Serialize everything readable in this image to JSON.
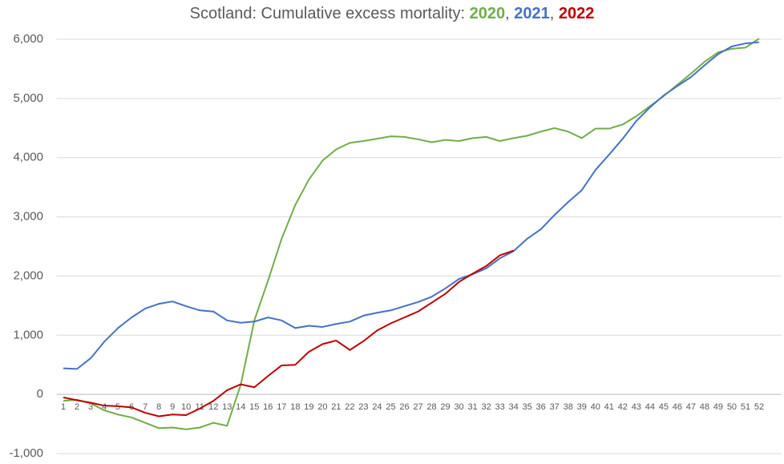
{
  "chart_data": {
    "type": "line",
    "title": "Scotland: Cumulative excess mortality:",
    "title_separator": ",",
    "categories": [
      "1",
      "2",
      "3",
      "4",
      "5",
      "6",
      "7",
      "8",
      "9",
      "10",
      "11",
      "12",
      "13",
      "14",
      "15",
      "16",
      "17",
      "18",
      "19",
      "20",
      "21",
      "22",
      "23",
      "24",
      "25",
      "26",
      "27",
      "28",
      "29",
      "30",
      "31",
      "32",
      "33",
      "34",
      "35",
      "36",
      "37",
      "38",
      "39",
      "40",
      "41",
      "42",
      "43",
      "44",
      "45",
      "46",
      "47",
      "48",
      "49",
      "50",
      "51",
      "52"
    ],
    "series": [
      {
        "name": "2020",
        "color": "#70ad47",
        "values": [
          -110,
          -90,
          -150,
          -270,
          -340,
          -390,
          -480,
          -570,
          -560,
          -590,
          -560,
          -480,
          -530,
          160,
          1250,
          1920,
          2630,
          3200,
          3630,
          3950,
          4140,
          4250,
          4280,
          4320,
          4360,
          4350,
          4310,
          4260,
          4300,
          4280,
          4330,
          4350,
          4280,
          4330,
          4370,
          4440,
          4500,
          4440,
          4330,
          4490,
          4490,
          4560,
          4700,
          4870,
          5040,
          5230,
          5420,
          5620,
          5780,
          5840,
          5860,
          6010
        ]
      },
      {
        "name": "2021",
        "color": "#4472c4",
        "values": [
          440,
          430,
          610,
          890,
          1120,
          1300,
          1450,
          1530,
          1570,
          1490,
          1420,
          1400,
          1250,
          1210,
          1230,
          1300,
          1250,
          1120,
          1160,
          1140,
          1190,
          1230,
          1330,
          1380,
          1420,
          1490,
          1560,
          1650,
          1790,
          1950,
          2030,
          2130,
          2300,
          2420,
          2630,
          2790,
          3030,
          3250,
          3450,
          3790,
          4050,
          4320,
          4620,
          4850,
          5050,
          5210,
          5360,
          5560,
          5750,
          5880,
          5930,
          5950
        ]
      },
      {
        "name": "2022",
        "color": "#c00000",
        "values": [
          -50,
          -100,
          -140,
          -190,
          -200,
          -220,
          -310,
          -370,
          -340,
          -350,
          -240,
          -110,
          70,
          170,
          120,
          310,
          490,
          500,
          720,
          850,
          910,
          750,
          900,
          1080,
          1200,
          1300,
          1400,
          1550,
          1700,
          1900,
          2040,
          2170,
          2350,
          2430,
          null,
          null,
          null,
          null,
          null,
          null,
          null,
          null,
          null,
          null,
          null,
          null,
          null,
          null,
          null,
          null,
          null,
          null
        ]
      }
    ],
    "ylim": [
      -1000,
      6000
    ],
    "yticks": [
      {
        "value": -1000,
        "label": "-1,000"
      },
      0,
      {
        "value": 1000,
        "label": "1,000"
      },
      {
        "value": 2000,
        "label": "2,000"
      },
      {
        "value": 3000,
        "label": "3,000"
      },
      {
        "value": 4000,
        "label": "4,000"
      },
      {
        "value": 5000,
        "label": "5,000"
      },
      {
        "value": 6000,
        "label": "6,000"
      }
    ],
    "grid": true
  }
}
